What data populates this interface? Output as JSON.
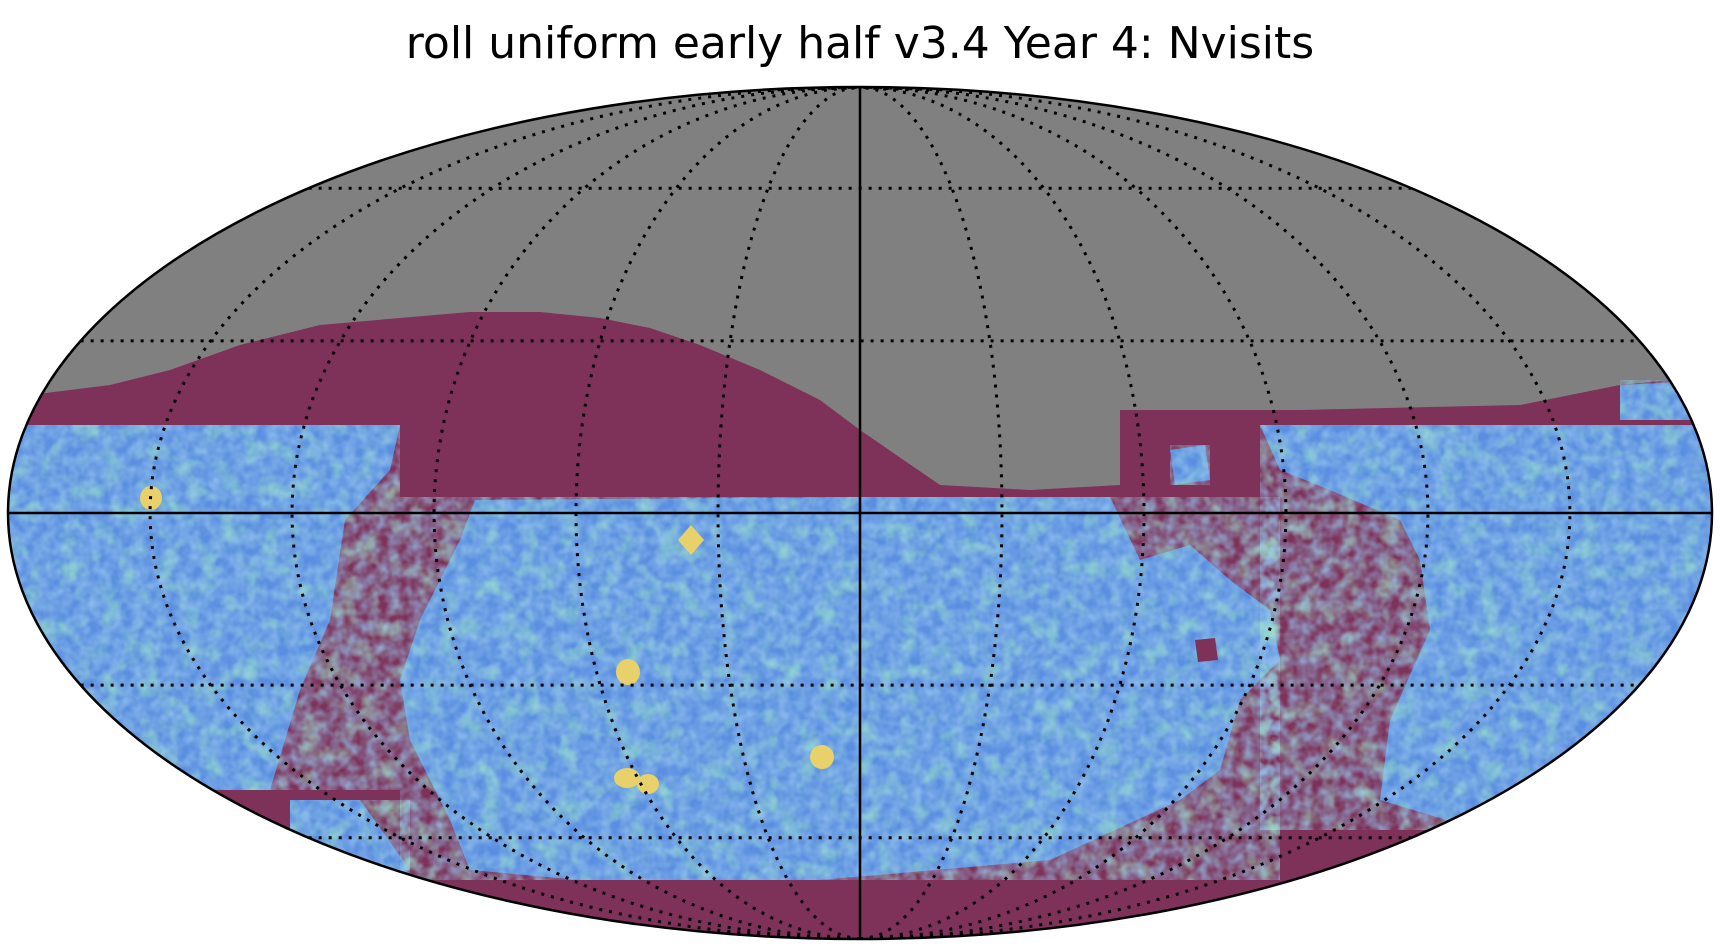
{
  "title": "roll uniform early half v3.4 Year 4: Nvisits",
  "projection": "mollweide",
  "map": {
    "metric": "Nvisits",
    "no_data_color": "#808080",
    "background_color": "#ffffff",
    "low_value_color": "#7e3159",
    "deep_drilling_color": "#e8d06a",
    "survey_palette": [
      "#6a66d6",
      "#5a8ee0",
      "#47b8d6",
      "#3fcca6",
      "#68dc72"
    ],
    "grid": true,
    "graticule_style": "dotted",
    "meridian_step_deg": 30,
    "parallel_step_deg": 30,
    "deep_drilling_fields": 6
  }
}
